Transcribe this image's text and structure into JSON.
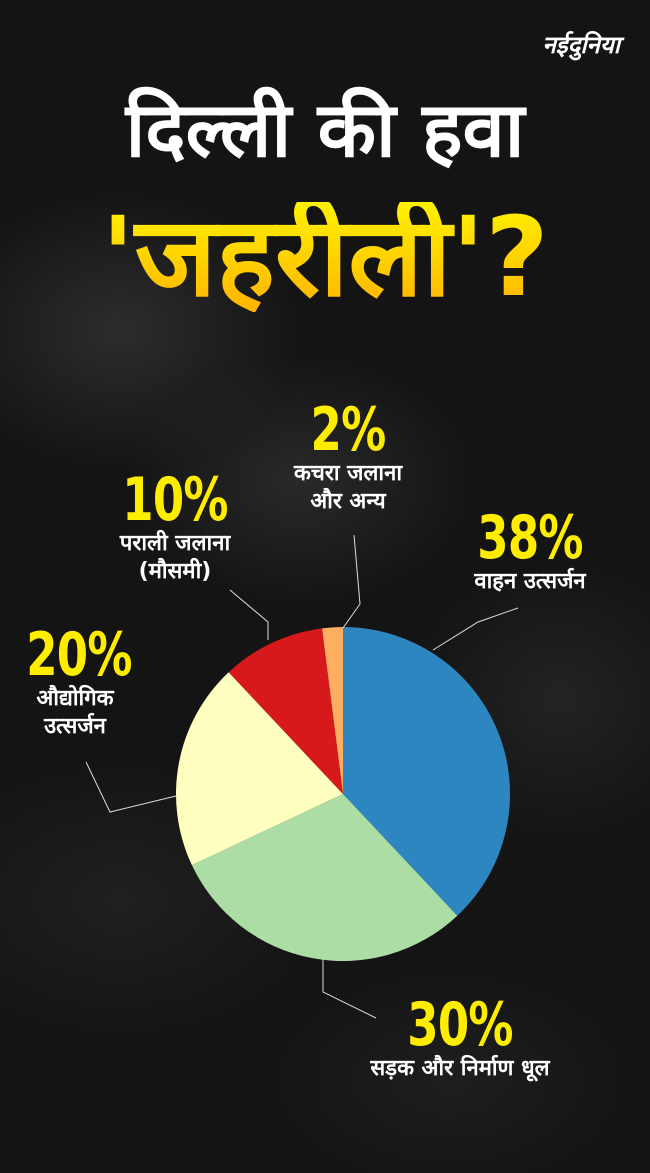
{
  "logo": "नईदुनिया",
  "title_line1": "दिल्ली की हवा",
  "title_line2": "'जहरीली'?",
  "chart_data": {
    "type": "pie",
    "start": "top",
    "direction": "clockwise",
    "slices": [
      {
        "value": 38,
        "pct_label": "38%",
        "label": [
          "वाहन उत्सर्जन"
        ],
        "color": "#2e86c1"
      },
      {
        "value": 30,
        "pct_label": "30%",
        "label": [
          "सड़क और निर्माण धूल"
        ],
        "color": "#abdda4"
      },
      {
        "value": 20,
        "pct_label": "20%",
        "label": [
          "औद्योगिक",
          "उत्सर्जन"
        ],
        "color": "#ffffbf"
      },
      {
        "value": 10,
        "pct_label": "10%",
        "label": [
          "पराली जलाना",
          "(मौसमी)"
        ],
        "color": "#d7191c"
      },
      {
        "value": 2,
        "pct_label": "2%",
        "label": [
          "कचरा जलाना",
          "और अन्य"
        ],
        "color": "#fdae61"
      }
    ]
  }
}
